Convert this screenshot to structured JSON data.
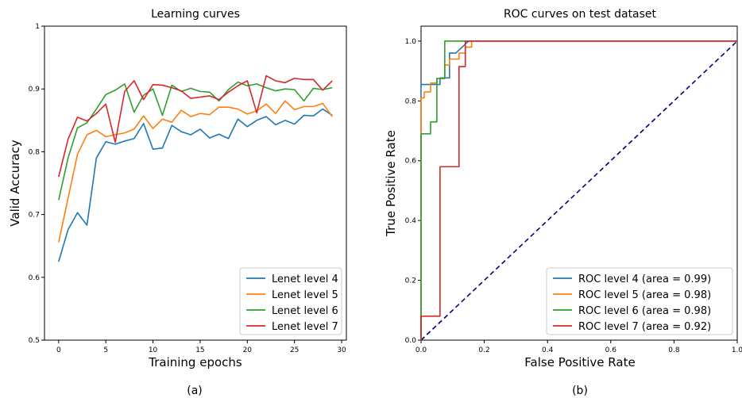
{
  "chart_data": [
    {
      "type": "line",
      "title": "Learning curves",
      "xlabel": "Training epochs",
      "ylabel": "Valid Accuracy",
      "caption": "(a)",
      "xlim": [
        -1.5,
        30.5
      ],
      "ylim": [
        0.5,
        1.0
      ],
      "xticks": [
        0,
        5,
        10,
        15,
        20,
        25,
        30
      ],
      "yticks": [
        0.5,
        0.6,
        0.7,
        0.8,
        0.9,
        1.0
      ],
      "legend_position": "lower-right",
      "grid": false,
      "x": [
        0,
        1,
        2,
        3,
        4,
        5,
        6,
        7,
        8,
        9,
        10,
        11,
        12,
        13,
        14,
        15,
        16,
        17,
        18,
        19,
        20,
        21,
        22,
        23,
        24,
        25,
        26,
        27,
        28,
        29
      ],
      "series": [
        {
          "name": "Lenet level 4",
          "color": "#1f77b4",
          "values": [
            0.625,
            0.676,
            0.703,
            0.683,
            0.79,
            0.816,
            0.812,
            0.817,
            0.821,
            0.845,
            0.804,
            0.806,
            0.842,
            0.832,
            0.827,
            0.836,
            0.822,
            0.828,
            0.821,
            0.852,
            0.84,
            0.85,
            0.856,
            0.843,
            0.85,
            0.844,
            0.858,
            0.857,
            0.868,
            0.858
          ]
        },
        {
          "name": "Lenet level 5",
          "color": "#ff7f0e",
          "values": [
            0.656,
            0.726,
            0.796,
            0.827,
            0.834,
            0.824,
            0.827,
            0.83,
            0.836,
            0.857,
            0.837,
            0.852,
            0.847,
            0.866,
            0.856,
            0.861,
            0.859,
            0.871,
            0.871,
            0.868,
            0.86,
            0.865,
            0.876,
            0.861,
            0.881,
            0.867,
            0.872,
            0.872,
            0.877,
            0.856
          ]
        },
        {
          "name": "Lenet level 6",
          "color": "#2ca02c",
          "values": [
            0.723,
            0.79,
            0.838,
            0.846,
            0.868,
            0.891,
            0.898,
            0.908,
            0.863,
            0.89,
            0.9,
            0.858,
            0.906,
            0.896,
            0.901,
            0.896,
            0.895,
            0.881,
            0.899,
            0.911,
            0.905,
            0.908,
            0.902,
            0.897,
            0.9,
            0.899,
            0.881,
            0.901,
            0.899,
            0.902
          ]
        },
        {
          "name": "Lenet level 7",
          "color": "#d62728",
          "values": [
            0.76,
            0.82,
            0.855,
            0.849,
            0.861,
            0.876,
            0.815,
            0.896,
            0.913,
            0.883,
            0.907,
            0.906,
            0.902,
            0.897,
            0.885,
            0.887,
            0.889,
            0.883,
            0.895,
            0.905,
            0.913,
            0.862,
            0.921,
            0.913,
            0.91,
            0.917,
            0.915,
            0.915,
            0.898,
            0.913
          ]
        }
      ]
    },
    {
      "type": "line",
      "title": "ROC curves on test dataset",
      "xlabel": "False Positive Rate",
      "ylabel": "True Positive Rate",
      "caption": "(b)",
      "xlim": [
        0.0,
        1.0
      ],
      "ylim": [
        0.0,
        1.05
      ],
      "xticks": [
        0.0,
        0.2,
        0.4,
        0.6,
        0.8,
        1.0
      ],
      "yticks": [
        0.0,
        0.2,
        0.4,
        0.6,
        0.8,
        1.0
      ],
      "legend_position": "lower-right",
      "grid": false,
      "diagonal": {
        "x": [
          0,
          1
        ],
        "y": [
          0,
          1
        ],
        "color": "#000080",
        "style": "dashed"
      },
      "series": [
        {
          "name": "ROC level 4 (area = 0.99)",
          "color": "#1f77b4",
          "x": [
            0,
            0,
            0.0,
            0.06,
            0.06,
            0.09,
            0.09,
            0.11,
            0.11,
            0.13,
            0.13,
            0.15,
            0.15,
            1.0
          ],
          "y": [
            0,
            0.8,
            0.855,
            0.855,
            0.877,
            0.877,
            0.96,
            0.96,
            0.96,
            0.98,
            0.98,
            1.0,
            1.0,
            1.0
          ]
        },
        {
          "name": "ROC level 5 (area = 0.98)",
          "color": "#ff7f0e",
          "x": [
            0,
            0,
            0.0,
            0.01,
            0.01,
            0.03,
            0.03,
            0.05,
            0.05,
            0.075,
            0.075,
            0.09,
            0.09,
            0.12,
            0.12,
            0.14,
            0.14,
            0.16,
            0.16,
            1.0
          ],
          "y": [
            0,
            0.78,
            0.81,
            0.81,
            0.83,
            0.83,
            0.86,
            0.86,
            0.875,
            0.875,
            0.92,
            0.92,
            0.94,
            0.94,
            0.96,
            0.96,
            0.98,
            0.98,
            1.0,
            1.0
          ]
        },
        {
          "name": "ROC level 6 (area = 0.98)",
          "color": "#2ca02c",
          "x": [
            0,
            0,
            0.0,
            0.03,
            0.03,
            0.05,
            0.05,
            0.075,
            0.075,
            1.0
          ],
          "y": [
            0,
            0.69,
            0.69,
            0.69,
            0.73,
            0.73,
            0.875,
            0.875,
            1.0,
            1.0
          ]
        },
        {
          "name": "ROC level 7 (area = 0.92)",
          "color": "#d62728",
          "x": [
            0,
            0,
            0.06,
            0.06,
            0.12,
            0.12,
            0.14,
            0.14,
            1.0
          ],
          "y": [
            0,
            0.08,
            0.08,
            0.58,
            0.58,
            0.915,
            0.915,
            1.0,
            1.0
          ]
        }
      ]
    }
  ]
}
